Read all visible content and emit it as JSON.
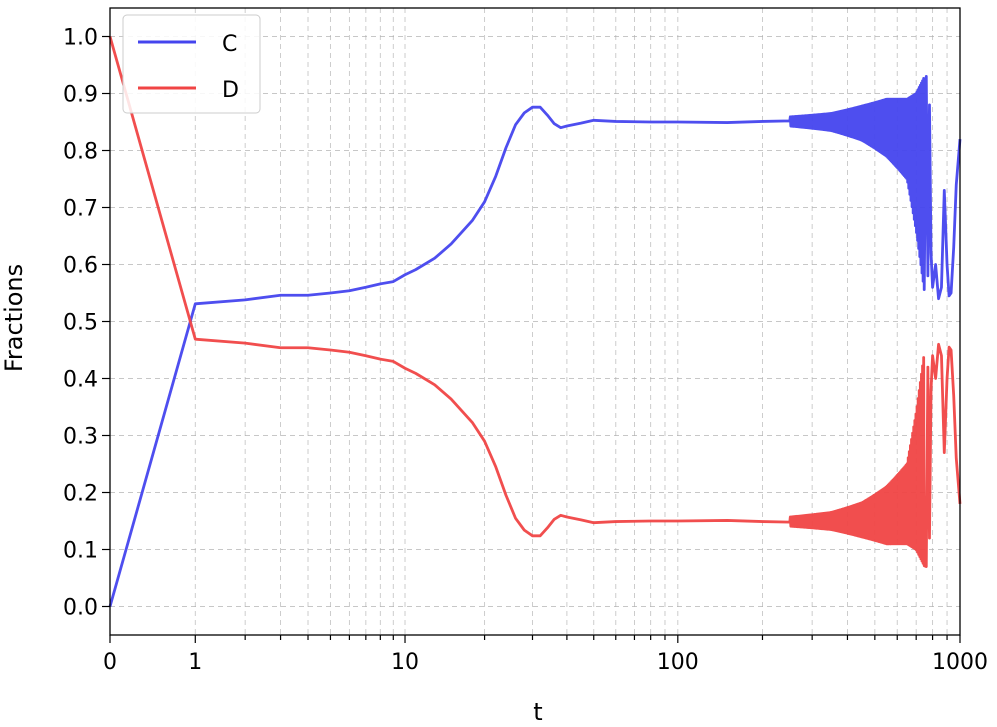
{
  "chart_data": {
    "type": "line",
    "xlabel": "t",
    "ylabel": "Fractions",
    "x_scale": "symlog",
    "xlim": [
      0,
      1000
    ],
    "ylim": [
      -0.05,
      1.05
    ],
    "grid": true,
    "legend_position": "upper-left",
    "x_ticks": [
      {
        "value": 0,
        "label": "0"
      },
      {
        "value": 1,
        "label": "1"
      },
      {
        "value": 10,
        "label": "10"
      },
      {
        "value": 100,
        "label": "100"
      },
      {
        "value": 1000,
        "label": "1000"
      }
    ],
    "y_ticks": [
      {
        "value": 0.0,
        "label": "0.0"
      },
      {
        "value": 0.1,
        "label": "0.1"
      },
      {
        "value": 0.2,
        "label": "0.2"
      },
      {
        "value": 0.3,
        "label": "0.3"
      },
      {
        "value": 0.4,
        "label": "0.4"
      },
      {
        "value": 0.5,
        "label": "0.5"
      },
      {
        "value": 0.6,
        "label": "0.6"
      },
      {
        "value": 0.7,
        "label": "0.7"
      },
      {
        "value": 0.8,
        "label": "0.8"
      },
      {
        "value": 0.9,
        "label": "0.9"
      },
      {
        "value": 1.0,
        "label": "1.0"
      }
    ],
    "series": [
      {
        "name": "C",
        "color": "#4444ee",
        "points": [
          [
            0,
            0.0
          ],
          [
            1,
            0.531
          ],
          [
            2,
            0.538
          ],
          [
            3,
            0.546
          ],
          [
            4,
            0.546
          ],
          [
            5,
            0.55
          ],
          [
            6,
            0.554
          ],
          [
            7,
            0.56
          ],
          [
            8,
            0.566
          ],
          [
            9,
            0.57
          ],
          [
            10,
            0.582
          ],
          [
            11,
            0.591
          ],
          [
            13,
            0.611
          ],
          [
            15,
            0.636
          ],
          [
            18,
            0.677
          ],
          [
            20,
            0.71
          ],
          [
            22,
            0.755
          ],
          [
            24,
            0.805
          ],
          [
            26,
            0.845
          ],
          [
            28,
            0.866
          ],
          [
            30,
            0.876
          ],
          [
            32,
            0.876
          ],
          [
            34,
            0.862
          ],
          [
            36,
            0.847
          ],
          [
            38,
            0.84
          ],
          [
            40,
            0.843
          ],
          [
            45,
            0.848
          ],
          [
            50,
            0.853
          ],
          [
            60,
            0.851
          ],
          [
            80,
            0.85
          ],
          [
            100,
            0.85
          ],
          [
            150,
            0.849
          ],
          [
            200,
            0.851
          ],
          [
            250,
            0.852
          ]
        ],
        "oscillation": [
          [
            250,
            0.851,
            0.008
          ],
          [
            350,
            0.85,
            0.015
          ],
          [
            450,
            0.848,
            0.03
          ],
          [
            550,
            0.84,
            0.05
          ],
          [
            650,
            0.82,
            0.07
          ],
          [
            700,
            0.78,
            0.12
          ],
          [
            750,
            0.74,
            0.19
          ]
        ],
        "tail": [
          [
            760,
            0.93
          ],
          [
            770,
            0.58
          ],
          [
            780,
            0.88
          ],
          [
            790,
            0.62
          ],
          [
            800,
            0.56
          ],
          [
            820,
            0.6
          ],
          [
            840,
            0.54
          ],
          [
            860,
            0.56
          ],
          [
            880,
            0.73
          ],
          [
            900,
            0.6
          ],
          [
            915,
            0.545
          ],
          [
            930,
            0.55
          ],
          [
            950,
            0.63
          ],
          [
            970,
            0.74
          ],
          [
            1000,
            0.82
          ]
        ]
      },
      {
        "name": "D",
        "color": "#f04444",
        "points": [
          [
            0,
            1.0
          ],
          [
            1,
            0.469
          ],
          [
            2,
            0.462
          ],
          [
            3,
            0.454
          ],
          [
            4,
            0.454
          ],
          [
            5,
            0.45
          ],
          [
            6,
            0.446
          ],
          [
            7,
            0.44
          ],
          [
            8,
            0.434
          ],
          [
            9,
            0.43
          ],
          [
            10,
            0.418
          ],
          [
            11,
            0.409
          ],
          [
            13,
            0.389
          ],
          [
            15,
            0.364
          ],
          [
            18,
            0.323
          ],
          [
            20,
            0.29
          ],
          [
            22,
            0.245
          ],
          [
            24,
            0.195
          ],
          [
            26,
            0.155
          ],
          [
            28,
            0.134
          ],
          [
            30,
            0.124
          ],
          [
            32,
            0.124
          ],
          [
            34,
            0.138
          ],
          [
            36,
            0.153
          ],
          [
            38,
            0.16
          ],
          [
            40,
            0.157
          ],
          [
            45,
            0.152
          ],
          [
            50,
            0.147
          ],
          [
            60,
            0.149
          ],
          [
            80,
            0.15
          ],
          [
            100,
            0.15
          ],
          [
            150,
            0.151
          ],
          [
            200,
            0.149
          ],
          [
            250,
            0.148
          ]
        ],
        "oscillation": [
          [
            250,
            0.149,
            0.008
          ],
          [
            350,
            0.15,
            0.015
          ],
          [
            450,
            0.152,
            0.03
          ],
          [
            550,
            0.16,
            0.05
          ],
          [
            650,
            0.18,
            0.07
          ],
          [
            700,
            0.22,
            0.12
          ],
          [
            750,
            0.26,
            0.19
          ]
        ],
        "tail": [
          [
            760,
            0.07
          ],
          [
            770,
            0.42
          ],
          [
            780,
            0.12
          ],
          [
            790,
            0.38
          ],
          [
            800,
            0.44
          ],
          [
            820,
            0.4
          ],
          [
            840,
            0.46
          ],
          [
            860,
            0.44
          ],
          [
            880,
            0.27
          ],
          [
            900,
            0.4
          ],
          [
            915,
            0.455
          ],
          [
            930,
            0.45
          ],
          [
            950,
            0.37
          ],
          [
            970,
            0.26
          ],
          [
            1000,
            0.18
          ]
        ]
      }
    ]
  }
}
